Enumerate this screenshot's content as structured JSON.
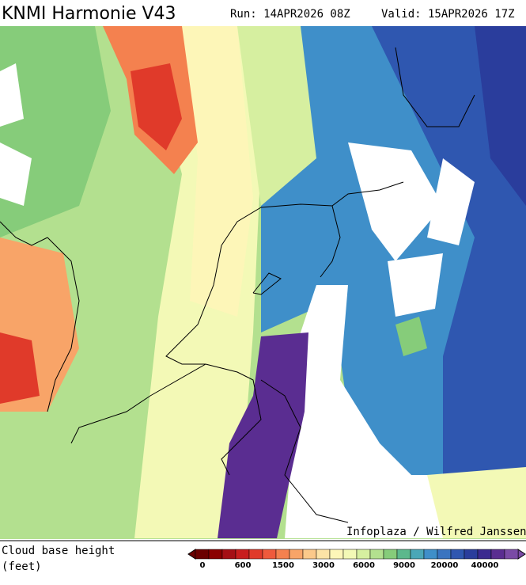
{
  "header": {
    "title": "KNMI Harmonie V43",
    "run": "Run: 14APR2026 08Z",
    "valid": "Valid: 15APR2026 17Z"
  },
  "credit": "Infoplaza / Wilfred Janssen",
  "legend": {
    "title": "Cloud base height",
    "unit": "(feet)",
    "ticks": [
      0,
      600,
      1500,
      3000,
      6000,
      9000,
      20000,
      40000
    ],
    "colors": [
      "#6b0000",
      "#8b0000",
      "#a50f15",
      "#c81e1e",
      "#e03a2a",
      "#ef5a3c",
      "#f4814f",
      "#f8a468",
      "#fbc98a",
      "#fde3a6",
      "#fdf6b8",
      "#f3f9b6",
      "#d6efa0",
      "#b3e08f",
      "#86cc7a",
      "#5cb88c",
      "#4aa7b7",
      "#3f8fc9",
      "#3a74c0",
      "#2f57b0",
      "#2a3d9c",
      "#3b2a8f",
      "#5a2d91",
      "#7a4ba6"
    ]
  }
}
